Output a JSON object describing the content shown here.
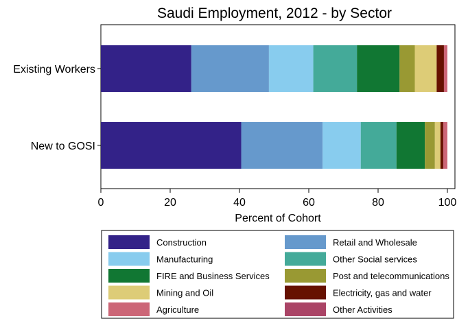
{
  "chart_data": {
    "type": "bar",
    "orientation": "horizontal",
    "stacked": true,
    "title": "Saudi Employment, 2012 - by Sector",
    "xlabel": "Percent of Cohort",
    "ylabel": "",
    "xlim": [
      0,
      100
    ],
    "xticks": [
      0,
      20,
      40,
      60,
      80,
      100
    ],
    "categories": [
      "Existing Workers",
      "New to GOSI"
    ],
    "series": [
      {
        "name": "Construction",
        "color": "#332288",
        "values": [
          26.1,
          40.5
        ]
      },
      {
        "name": "Retail and Wholesale",
        "color": "#6699CC",
        "values": [
          22.4,
          23.5
        ]
      },
      {
        "name": "Manufacturing",
        "color": "#88CCEE",
        "values": [
          12.8,
          11.0
        ]
      },
      {
        "name": "Other Social services",
        "color": "#44AA99",
        "values": [
          12.6,
          10.3
        ]
      },
      {
        "name": "FIRE and Business Services",
        "color": "#117733",
        "values": [
          12.3,
          8.2
        ]
      },
      {
        "name": "Post and telecommunications",
        "color": "#999933",
        "values": [
          4.4,
          2.9
        ]
      },
      {
        "name": "Mining and Oil",
        "color": "#DDCC77",
        "values": [
          6.3,
          1.6
        ]
      },
      {
        "name": "Electricity, gas and water",
        "color": "#661100",
        "values": [
          2.1,
          0.8
        ]
      },
      {
        "name": "Agriculture",
        "color": "#CC6677",
        "values": [
          1.0,
          1.2
        ]
      },
      {
        "name": "Other Activities",
        "color": "#AA4466",
        "values": [
          0.0,
          0.0
        ]
      }
    ],
    "grid": false,
    "legend_position": "bottom"
  }
}
